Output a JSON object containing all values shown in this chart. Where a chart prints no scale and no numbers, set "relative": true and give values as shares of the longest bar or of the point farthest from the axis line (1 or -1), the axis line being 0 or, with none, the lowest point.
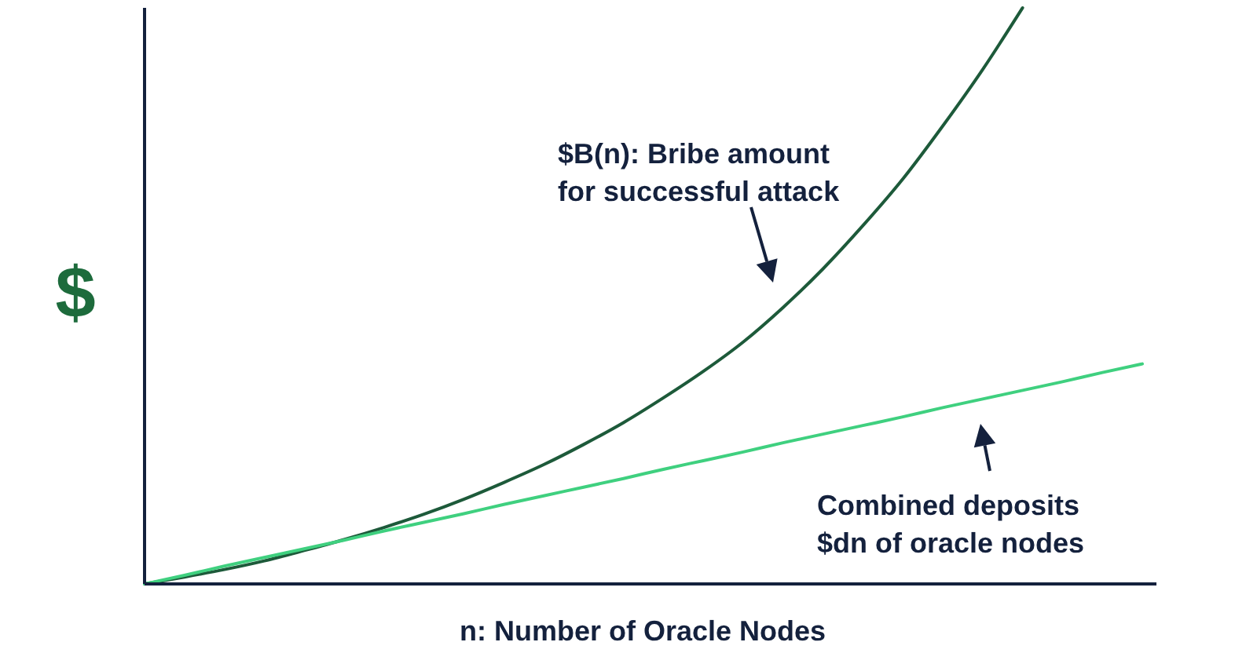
{
  "chart_data": {
    "type": "line",
    "relative": true,
    "xlabel": "n: Number of Oracle Nodes",
    "ylabel": "$",
    "categories": [
      null,
      null,
      null,
      null,
      null,
      null,
      null,
      null,
      null,
      null,
      null,
      null,
      null,
      null,
      null,
      null,
      null,
      null,
      null,
      null,
      null,
      null,
      null,
      null,
      null,
      null
    ],
    "series": [
      {
        "color": "#1d5a3a",
        "values": [
          0,
          0.012,
          0.025,
          0.04,
          0.058,
          0.077,
          0.098,
          0.121,
          0.147,
          0.176,
          0.207,
          0.242,
          0.28,
          0.323,
          0.369,
          0.42,
          0.48,
          0.547,
          0.622,
          0.703,
          0.795,
          0.893,
          1,
          null,
          null,
          null
        ]
      },
      {
        "color": "#3fd07f",
        "values": [
          0,
          0.015,
          0.031,
          0.046,
          0.061,
          0.076,
          0.092,
          0.107,
          0.122,
          0.138,
          0.153,
          0.168,
          0.183,
          0.199,
          0.214,
          0.229,
          0.245,
          0.26,
          0.275,
          0.29,
          0.306,
          0.321,
          0.336,
          0.351,
          0.367,
          0.382
        ]
      }
    ],
    "annotations": [
      "$B(n): Bribe amount\nfor successful attack",
      "Combined deposits\n$dn of oracle nodes"
    ]
  }
}
